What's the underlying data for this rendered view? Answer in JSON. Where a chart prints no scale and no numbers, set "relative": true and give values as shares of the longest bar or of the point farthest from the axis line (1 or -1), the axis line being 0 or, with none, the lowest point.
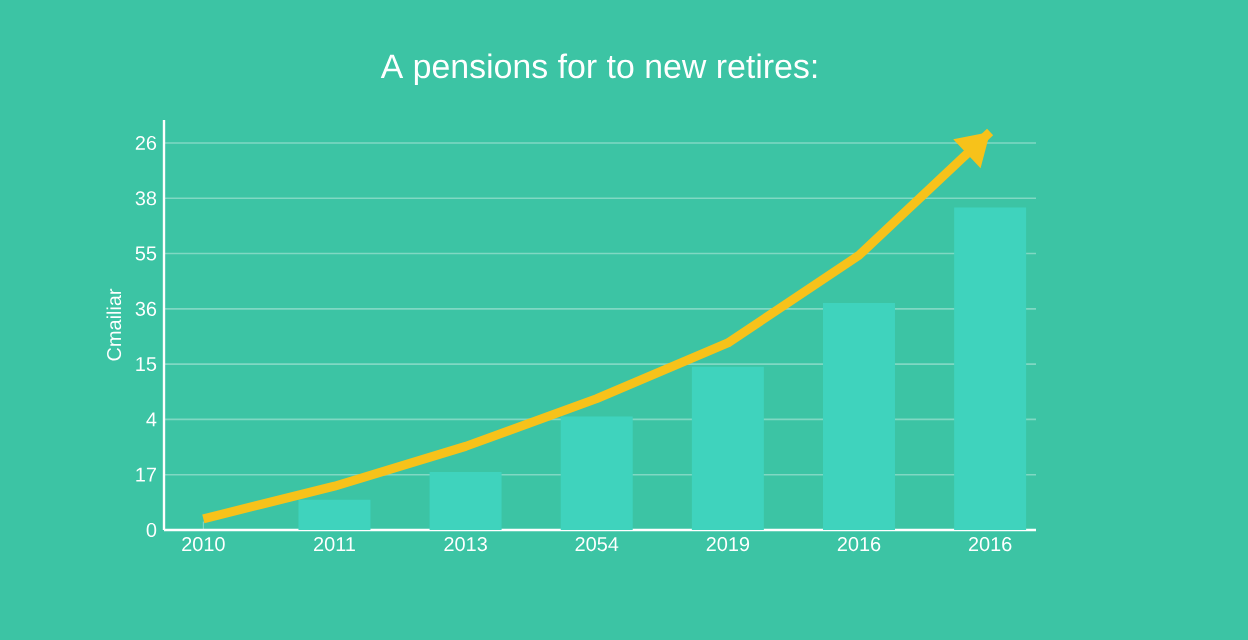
{
  "chart_data": {
    "type": "bar",
    "title": "A pensions for to new retires:",
    "ylabel": "Cmailiar",
    "relative": true,
    "categories": [
      "2010",
      "2011",
      "2013",
      "2054",
      "2019",
      "2016",
      "2016"
    ],
    "series": [
      {
        "color": "#3fd3bd",
        "values": [
          null,
          0.076,
          0.146,
          0.285,
          0.41,
          0.57,
          0.81
        ]
      },
      {
        "type": "line",
        "color": "#f7c21a",
        "values": [
          0.028,
          0.11,
          0.21,
          0.33,
          0.47,
          0.69,
          1
        ]
      }
    ],
    "annotations": [
      "26",
      "38",
      "55",
      "36",
      "15",
      "4",
      "17",
      "0"
    ],
    "grid": "y"
  }
}
